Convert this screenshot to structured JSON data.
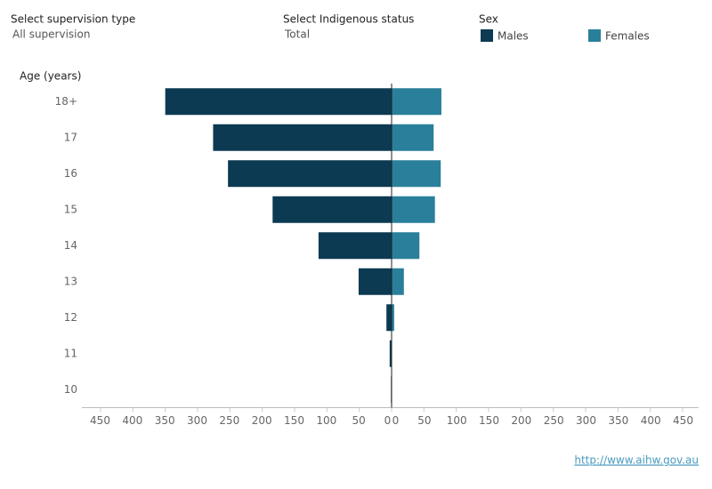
{
  "filters": [
    {
      "label": "Select supervision type",
      "value": "All supervision"
    },
    {
      "label": "Select Indigenous status",
      "value": "Total"
    }
  ],
  "chart_data": {
    "type": "pyramid",
    "y_label": "Age (years)",
    "legend_title": "Sex",
    "categories": [
      "18+",
      "17",
      "16",
      "15",
      "14",
      "13",
      "12",
      "11",
      "10"
    ],
    "series": [
      {
        "name": "Males",
        "color": "#0b3a52",
        "values": [
          350,
          276,
          253,
          184,
          113,
          51,
          8,
          3,
          1
        ]
      },
      {
        "name": "Females",
        "color": "#2a7f9a",
        "values": [
          77,
          65,
          76,
          67,
          43,
          19,
          4,
          0,
          0
        ]
      }
    ],
    "xlim": [
      0,
      450
    ],
    "xticks": [
      0,
      50,
      100,
      150,
      200,
      250,
      300,
      350,
      400,
      450
    ]
  },
  "source_link": "http://www.aihw.gov.au"
}
